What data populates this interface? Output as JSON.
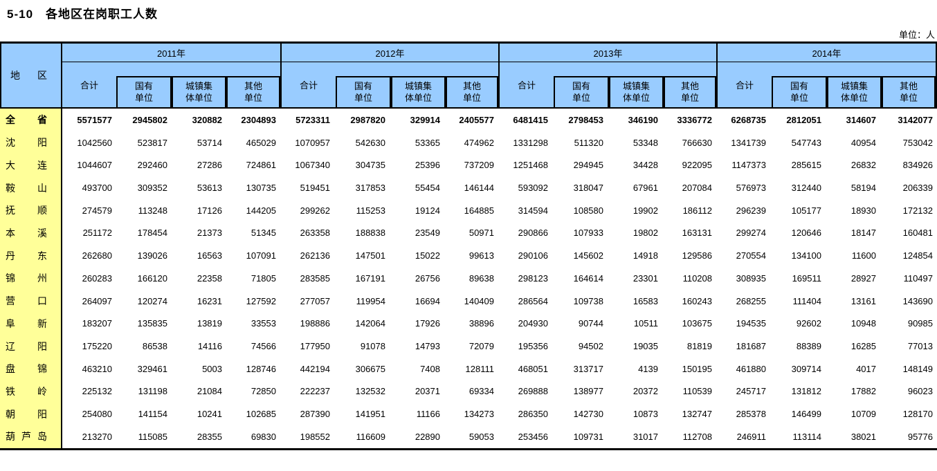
{
  "page": {
    "title": "5-10　各地区在岗职工人数",
    "unit_label": "单位：人"
  },
  "colors": {
    "header_bg": "#99CCFF",
    "region_bg": "#FFFF99",
    "border": "#000000"
  },
  "table": {
    "region_header": "地区",
    "years": [
      "2011年",
      "2012年",
      "2013年",
      "2014年"
    ],
    "sub_columns": [
      {
        "name": "total",
        "lines": [
          "合计"
        ]
      },
      {
        "name": "state-owned-units",
        "lines": [
          "国有",
          "单位"
        ]
      },
      {
        "name": "urban-collective-units",
        "lines": [
          "城镇集",
          "体单位"
        ]
      },
      {
        "name": "other-units",
        "lines": [
          "其他",
          "单位"
        ]
      }
    ],
    "rows": [
      {
        "region": "全省",
        "bold": true,
        "values": [
          5571577,
          2945802,
          320882,
          2304893,
          5723311,
          2987820,
          329914,
          2405577,
          6481415,
          2798453,
          346190,
          3336772,
          6268735,
          2812051,
          314607,
          3142077
        ]
      },
      {
        "region": "沈阳",
        "bold": false,
        "values": [
          1042560,
          523817,
          53714,
          465029,
          1070957,
          542630,
          53365,
          474962,
          1331298,
          511320,
          53348,
          766630,
          1341739,
          547743,
          40954,
          753042
        ]
      },
      {
        "region": "大连",
        "bold": false,
        "values": [
          1044607,
          292460,
          27286,
          724861,
          1067340,
          304735,
          25396,
          737209,
          1251468,
          294945,
          34428,
          922095,
          1147373,
          285615,
          26832,
          834926
        ]
      },
      {
        "region": "鞍山",
        "bold": false,
        "values": [
          493700,
          309352,
          53613,
          130735,
          519451,
          317853,
          55454,
          146144,
          593092,
          318047,
          67961,
          207084,
          576973,
          312440,
          58194,
          206339
        ]
      },
      {
        "region": "抚顺",
        "bold": false,
        "values": [
          274579,
          113248,
          17126,
          144205,
          299262,
          115253,
          19124,
          164885,
          314594,
          108580,
          19902,
          186112,
          296239,
          105177,
          18930,
          172132
        ]
      },
      {
        "region": "本溪",
        "bold": false,
        "values": [
          251172,
          178454,
          21373,
          51345,
          263358,
          188838,
          23549,
          50971,
          290866,
          107933,
          19802,
          163131,
          299274,
          120646,
          18147,
          160481
        ]
      },
      {
        "region": "丹东",
        "bold": false,
        "values": [
          262680,
          139026,
          16563,
          107091,
          262136,
          147501,
          15022,
          99613,
          290106,
          145602,
          14918,
          129586,
          270554,
          134100,
          11600,
          124854
        ]
      },
      {
        "region": "锦州",
        "bold": false,
        "values": [
          260283,
          166120,
          22358,
          71805,
          283585,
          167191,
          26756,
          89638,
          298123,
          164614,
          23301,
          110208,
          308935,
          169511,
          28927,
          110497
        ]
      },
      {
        "region": "营口",
        "bold": false,
        "values": [
          264097,
          120274,
          16231,
          127592,
          277057,
          119954,
          16694,
          140409,
          286564,
          109738,
          16583,
          160243,
          268255,
          111404,
          13161,
          143690
        ]
      },
      {
        "region": "阜新",
        "bold": false,
        "values": [
          183207,
          135835,
          13819,
          33553,
          198886,
          142064,
          17926,
          38896,
          204930,
          90744,
          10511,
          103675,
          194535,
          92602,
          10948,
          90985
        ]
      },
      {
        "region": "辽阳",
        "bold": false,
        "values": [
          175220,
          86538,
          14116,
          74566,
          177950,
          91078,
          14793,
          72079,
          195356,
          94502,
          19035,
          81819,
          181687,
          88389,
          16285,
          77013
        ]
      },
      {
        "region": "盘锦",
        "bold": false,
        "values": [
          463210,
          329461,
          5003,
          128746,
          442194,
          306675,
          7408,
          128111,
          468051,
          313717,
          4139,
          150195,
          461880,
          309714,
          4017,
          148149
        ]
      },
      {
        "region": "铁岭",
        "bold": false,
        "values": [
          225132,
          131198,
          21084,
          72850,
          222237,
          132532,
          20371,
          69334,
          269888,
          138977,
          20372,
          110539,
          245717,
          131812,
          17882,
          96023
        ]
      },
      {
        "region": "朝阳",
        "bold": false,
        "values": [
          254080,
          141154,
          10241,
          102685,
          287390,
          141951,
          11166,
          134273,
          286350,
          142730,
          10873,
          132747,
          285378,
          146499,
          10709,
          128170
        ]
      },
      {
        "region": "葫芦岛",
        "bold": false,
        "values": [
          213270,
          115085,
          28355,
          69830,
          198552,
          116609,
          22890,
          59053,
          253456,
          109731,
          31017,
          112708,
          246911,
          113114,
          38021,
          95776
        ]
      }
    ]
  }
}
